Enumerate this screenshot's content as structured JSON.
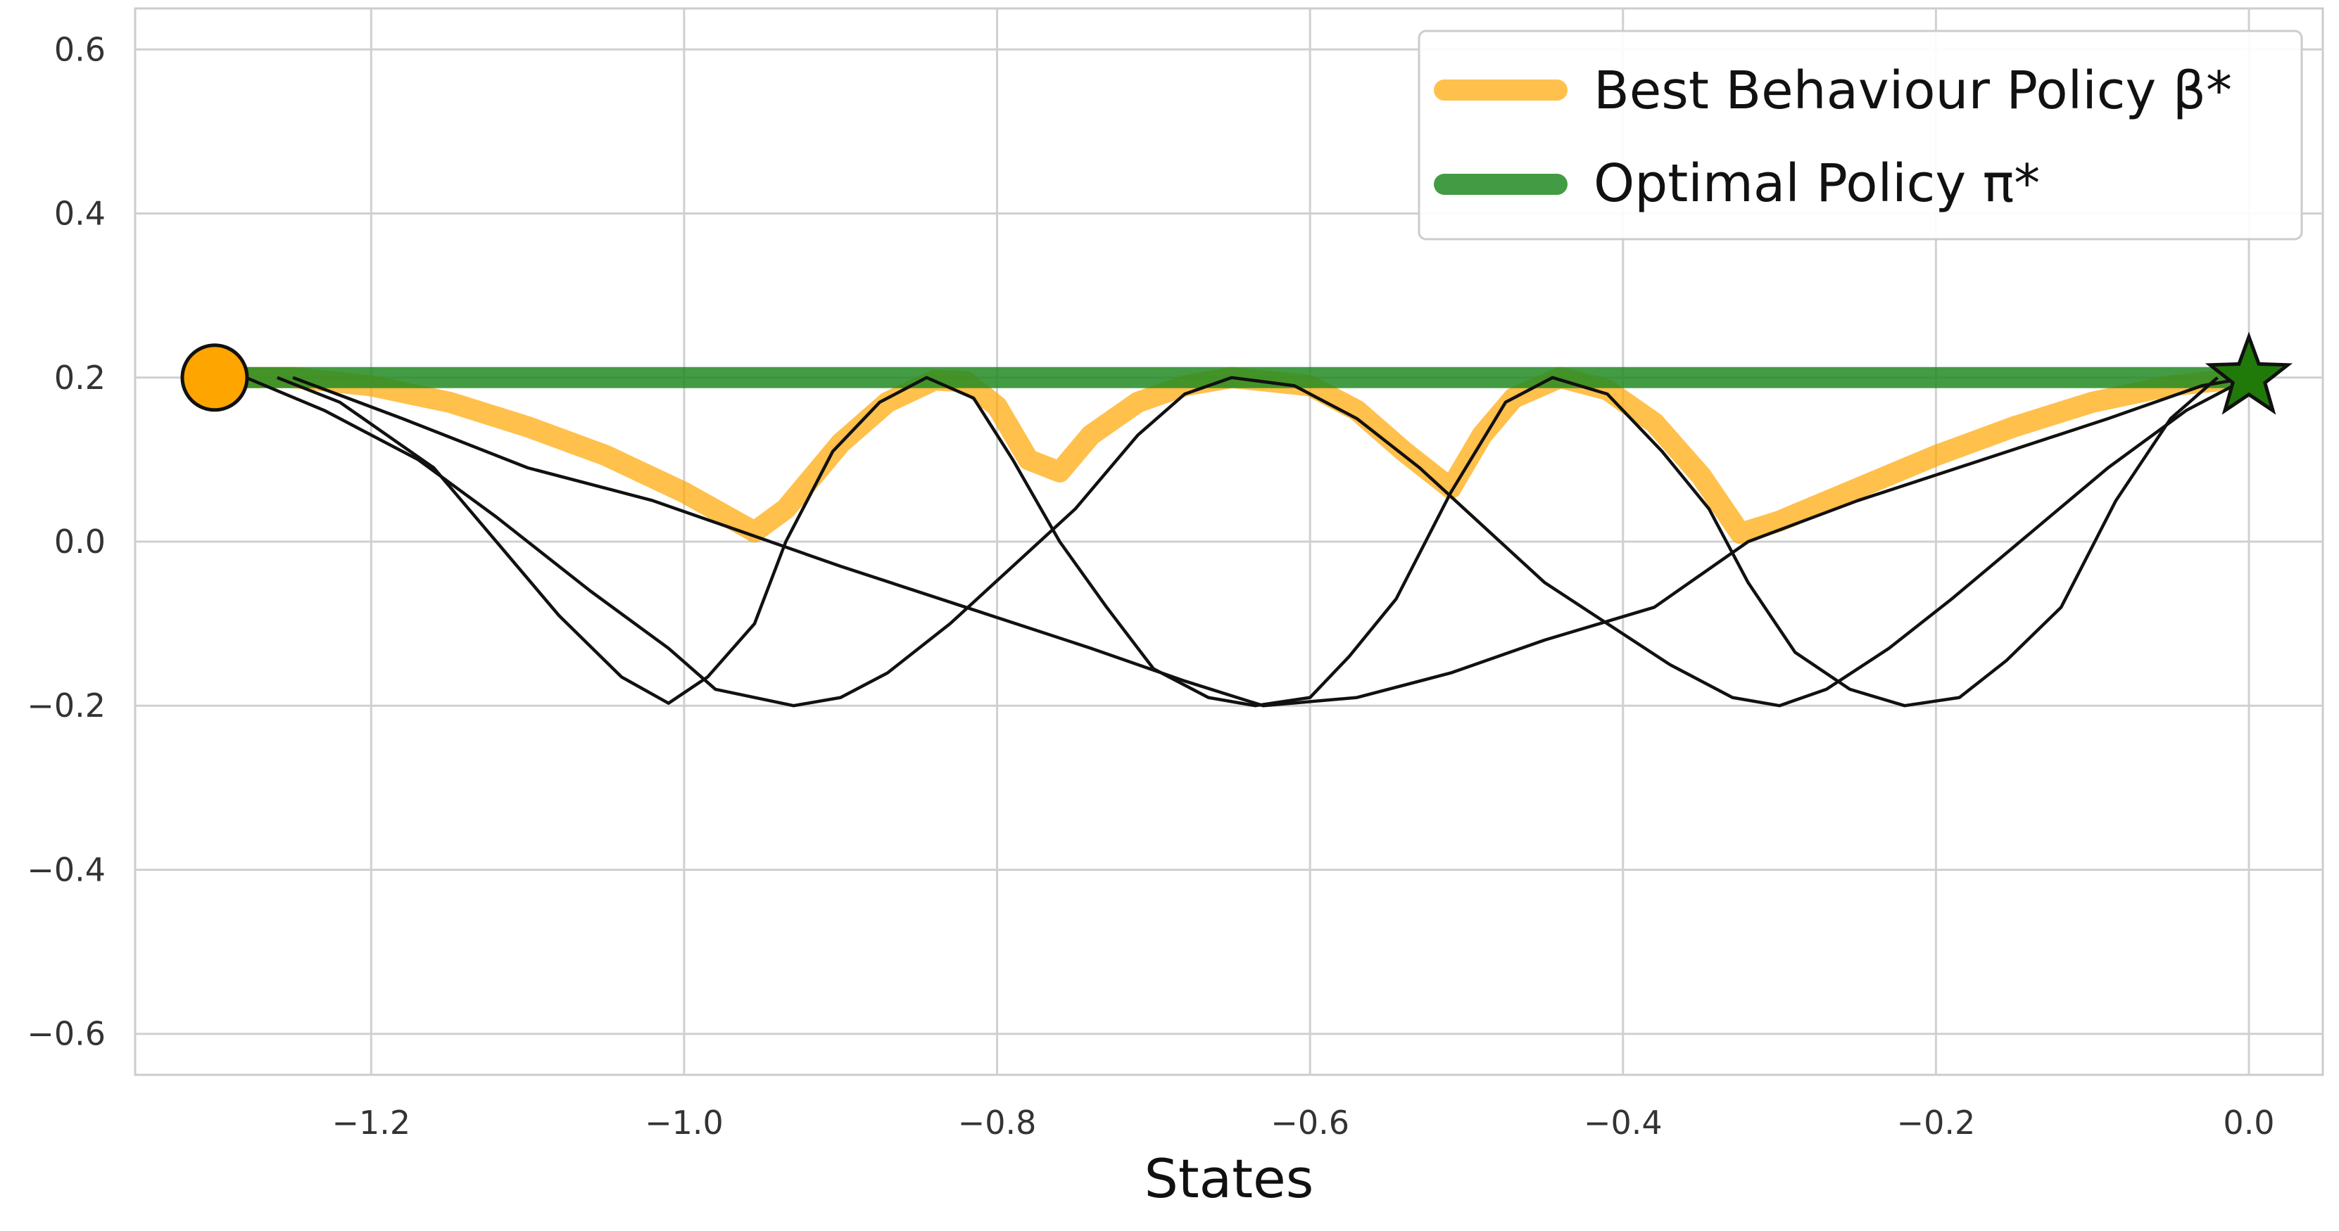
{
  "chart_data": {
    "type": "line",
    "title": "",
    "xlabel": "States",
    "ylabel": "",
    "xlim": [
      -1.3,
      0.0
    ],
    "ylim": [
      -0.65,
      0.65
    ],
    "x_ticks": [
      {
        "value": -1.2,
        "label": "−1.2"
      },
      {
        "value": -1.0,
        "label": "−1.0"
      },
      {
        "value": -0.8,
        "label": "−0.8"
      },
      {
        "value": -0.6,
        "label": "−0.6"
      },
      {
        "value": -0.4,
        "label": "−0.4"
      },
      {
        "value": -0.2,
        "label": "−0.2"
      },
      {
        "value": 0.0,
        "label": "0.0"
      }
    ],
    "y_ticks": [
      {
        "value": 0.6,
        "label": "0.6"
      },
      {
        "value": 0.4,
        "label": "0.4"
      },
      {
        "value": 0.2,
        "label": "0.2"
      },
      {
        "value": 0.0,
        "label": "0.0"
      },
      {
        "value": -0.2,
        "label": "−0.2"
      },
      {
        "value": -0.4,
        "label": "−0.4"
      },
      {
        "value": -0.6,
        "label": "−0.6"
      }
    ],
    "grid": true,
    "legend_position": "top-right",
    "legend": [
      {
        "label": "Best Behaviour Policy β*",
        "color": "#ffa500"
      },
      {
        "label": "Optimal Policy π*",
        "color": "#228b22"
      }
    ],
    "series": [
      {
        "name": "Best Behaviour Policy β*",
        "color": "#ffa500",
        "points": [
          [
            -1.3,
            0.2
          ],
          [
            -1.25,
            0.2
          ],
          [
            -1.2,
            0.19
          ],
          [
            -1.15,
            0.17
          ],
          [
            -1.1,
            0.14
          ],
          [
            -1.05,
            0.105
          ],
          [
            -1.0,
            0.06
          ],
          [
            -0.955,
            0.012
          ],
          [
            -0.935,
            0.04
          ],
          [
            -0.9,
            0.12
          ],
          [
            -0.87,
            0.17
          ],
          [
            -0.84,
            0.197
          ],
          [
            -0.82,
            0.195
          ],
          [
            -0.8,
            0.165
          ],
          [
            -0.78,
            0.1
          ],
          [
            -0.76,
            0.085
          ],
          [
            -0.74,
            0.13
          ],
          [
            -0.71,
            0.17
          ],
          [
            -0.68,
            0.19
          ],
          [
            -0.65,
            0.2
          ],
          [
            -0.6,
            0.19
          ],
          [
            -0.57,
            0.16
          ],
          [
            -0.54,
            0.11
          ],
          [
            -0.51,
            0.065
          ],
          [
            -0.49,
            0.13
          ],
          [
            -0.47,
            0.175
          ],
          [
            -0.44,
            0.2
          ],
          [
            -0.41,
            0.185
          ],
          [
            -0.38,
            0.145
          ],
          [
            -0.35,
            0.08
          ],
          [
            -0.325,
            0.01
          ],
          [
            -0.3,
            0.025
          ],
          [
            -0.25,
            0.065
          ],
          [
            -0.2,
            0.105
          ],
          [
            -0.15,
            0.14
          ],
          [
            -0.1,
            0.17
          ],
          [
            -0.05,
            0.19
          ],
          [
            0.0,
            0.2
          ]
        ]
      },
      {
        "name": "Optimal Policy π*",
        "color": "#228b22",
        "points": [
          [
            -1.3,
            0.2
          ],
          [
            0.0,
            0.2
          ]
        ]
      },
      {
        "name": "",
        "color": "#111111",
        "points": [
          [
            -1.26,
            0.2
          ],
          [
            -1.22,
            0.17
          ],
          [
            -1.16,
            0.09
          ],
          [
            -1.12,
            0.0
          ],
          [
            -1.08,
            -0.09
          ],
          [
            -1.04,
            -0.165
          ],
          [
            -1.01,
            -0.197
          ],
          [
            -0.985,
            -0.165
          ],
          [
            -0.955,
            -0.1
          ],
          [
            -0.935,
            0.0
          ],
          [
            -0.905,
            0.11
          ],
          [
            -0.875,
            0.17
          ],
          [
            -0.845,
            0.2
          ],
          [
            -0.815,
            0.175
          ],
          [
            -0.79,
            0.1
          ],
          [
            -0.76,
            0.0
          ],
          [
            -0.73,
            -0.08
          ],
          [
            -0.7,
            -0.155
          ],
          [
            -0.665,
            -0.19
          ],
          [
            -0.635,
            -0.2
          ],
          [
            -0.6,
            -0.19
          ],
          [
            -0.575,
            -0.14
          ],
          [
            -0.545,
            -0.07
          ],
          [
            -0.51,
            0.06
          ],
          [
            -0.475,
            0.17
          ],
          [
            -0.445,
            0.2
          ],
          [
            -0.41,
            0.18
          ],
          [
            -0.375,
            0.11
          ],
          [
            -0.345,
            0.04
          ],
          [
            -0.32,
            -0.05
          ],
          [
            -0.29,
            -0.135
          ],
          [
            -0.255,
            -0.18
          ],
          [
            -0.22,
            -0.2
          ],
          [
            -0.185,
            -0.19
          ],
          [
            -0.155,
            -0.145
          ],
          [
            -0.12,
            -0.08
          ],
          [
            -0.085,
            0.05
          ],
          [
            -0.05,
            0.15
          ],
          [
            -0.02,
            0.2
          ]
        ]
      },
      {
        "name": "",
        "color": "#111111",
        "points": [
          [
            -1.28,
            0.2
          ],
          [
            -1.23,
            0.16
          ],
          [
            -1.17,
            0.1
          ],
          [
            -1.12,
            0.03
          ],
          [
            -1.06,
            -0.06
          ],
          [
            -1.01,
            -0.13
          ],
          [
            -0.98,
            -0.18
          ],
          [
            -0.93,
            -0.2
          ],
          [
            -0.9,
            -0.19
          ],
          [
            -0.87,
            -0.16
          ],
          [
            -0.83,
            -0.1
          ],
          [
            -0.79,
            -0.03
          ],
          [
            -0.75,
            0.04
          ],
          [
            -0.71,
            0.13
          ],
          [
            -0.68,
            0.18
          ],
          [
            -0.65,
            0.2
          ],
          [
            -0.61,
            0.19
          ],
          [
            -0.57,
            0.15
          ],
          [
            -0.53,
            0.09
          ],
          [
            -0.49,
            0.02
          ],
          [
            -0.45,
            -0.05
          ],
          [
            -0.41,
            -0.1
          ],
          [
            -0.37,
            -0.15
          ],
          [
            -0.33,
            -0.19
          ],
          [
            -0.3,
            -0.2
          ],
          [
            -0.27,
            -0.18
          ],
          [
            -0.23,
            -0.13
          ],
          [
            -0.19,
            -0.07
          ],
          [
            -0.14,
            0.01
          ],
          [
            -0.09,
            0.09
          ],
          [
            -0.04,
            0.16
          ],
          [
            0.0,
            0.2
          ]
        ]
      },
      {
        "name": "",
        "color": "#111111",
        "points": [
          [
            -1.25,
            0.2
          ],
          [
            -1.18,
            0.15
          ],
          [
            -1.1,
            0.09
          ],
          [
            -1.02,
            0.05
          ],
          [
            -0.96,
            0.01
          ],
          [
            -0.9,
            -0.03
          ],
          [
            -0.82,
            -0.08
          ],
          [
            -0.74,
            -0.13
          ],
          [
            -0.68,
            -0.17
          ],
          [
            -0.63,
            -0.2
          ],
          [
            -0.57,
            -0.19
          ],
          [
            -0.51,
            -0.16
          ],
          [
            -0.45,
            -0.12
          ],
          [
            -0.38,
            -0.08
          ],
          [
            -0.32,
            0.0
          ],
          [
            -0.25,
            0.05
          ],
          [
            -0.17,
            0.1
          ],
          [
            -0.09,
            0.15
          ],
          [
            -0.03,
            0.19
          ],
          [
            0.0,
            0.2
          ]
        ]
      }
    ],
    "markers": [
      {
        "name": "start",
        "shape": "circle",
        "x": -1.3,
        "y": 0.2,
        "color": "#ffa500"
      },
      {
        "name": "goal",
        "shape": "star",
        "x": 0.0,
        "y": 0.2,
        "color": "#1f7a0a"
      }
    ]
  }
}
